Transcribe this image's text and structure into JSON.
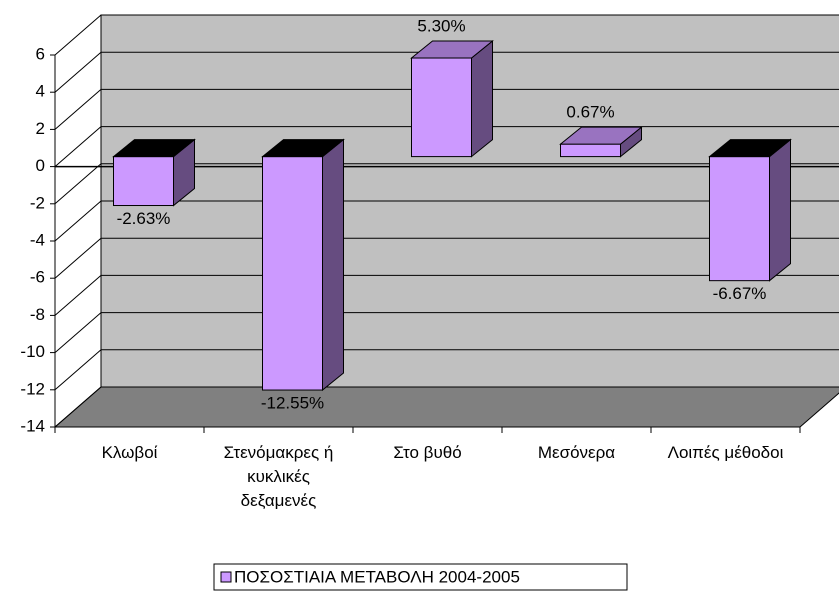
{
  "chart_data": {
    "type": "bar",
    "categories": [
      "Κλωβοί",
      "Στενόμακρες ή κυκλικές δεξαμενές",
      "Στο βυθό",
      "Μεσόνερα",
      "Λοιπές μέθοδοι"
    ],
    "series": [
      {
        "name": "ΠΟΣΟΣΤΙΑΙΑ ΜΕΤΑΒΟΛΗ 2004-2005",
        "color": "#cc99ff",
        "values": [
          -2.63,
          -12.55,
          5.3,
          0.67,
          -6.67
        ],
        "value_labels": [
          "-2.63%",
          "-12.55%",
          "5.30%",
          "0.67%",
          "-6.67%"
        ]
      }
    ],
    "ylim": [
      -14,
      6
    ],
    "yticks": [
      -14,
      -12,
      -10,
      -8,
      -6,
      -4,
      -2,
      0,
      2,
      4,
      6
    ],
    "grid": true,
    "legend": "bottom"
  }
}
